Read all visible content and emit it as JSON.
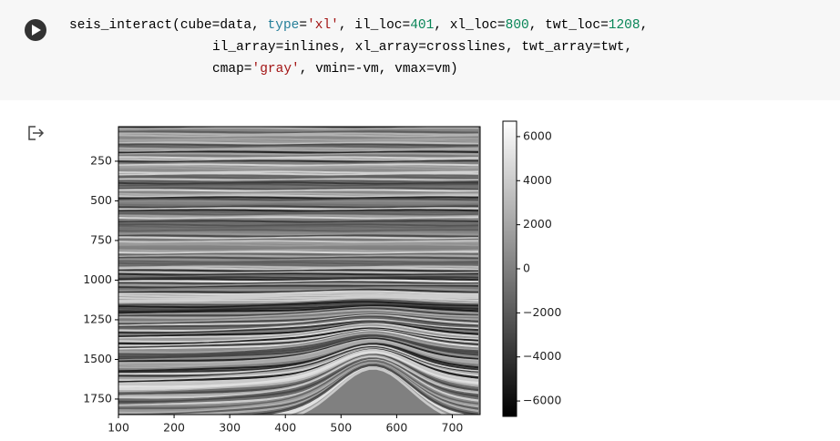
{
  "code": [
    [
      {
        "text": "seis_interact(cube=data, ",
        "color": "#000000"
      },
      {
        "text": "type",
        "color": "#267f99"
      },
      {
        "text": "=",
        "color": "#000000"
      },
      {
        "text": "'xl'",
        "color": "#a31515"
      },
      {
        "text": ", il_loc=",
        "color": "#000000"
      },
      {
        "text": "401",
        "color": "#098658"
      },
      {
        "text": ", xl_loc=",
        "color": "#000000"
      },
      {
        "text": "800",
        "color": "#098658"
      },
      {
        "text": ", twt_loc=",
        "color": "#000000"
      },
      {
        "text": "1208",
        "color": "#098658"
      },
      {
        "text": ",",
        "color": "#000000"
      }
    ],
    [
      {
        "text": "il_array=inlines, xl_array=crosslines, twt_array=twt,",
        "color": "#000000"
      }
    ],
    [
      {
        "text": "cmap=",
        "color": "#000000"
      },
      {
        "text": "'gray'",
        "color": "#a31515"
      },
      {
        "text": ", vmin=-vm, vmax=vm)",
        "color": "#000000"
      }
    ]
  ],
  "chart_data": {
    "type": "image",
    "cmap": "gray",
    "xlim": [
      100,
      750
    ],
    "xticks": [
      100,
      200,
      300,
      400,
      500,
      600,
      700
    ],
    "ylim": [
      1848,
      32
    ],
    "yticks": [
      250,
      500,
      750,
      1000,
      1250,
      1500,
      1750
    ],
    "colorbar": {
      "clim": [
        -6700,
        6700
      ],
      "ticks": [
        6000,
        4000,
        2000,
        0,
        {
          "value": -2000,
          "label": "−2000"
        },
        {
          "value": -4000,
          "label": "−4000"
        },
        {
          "value": -6000,
          "label": "−6000"
        }
      ]
    }
  }
}
